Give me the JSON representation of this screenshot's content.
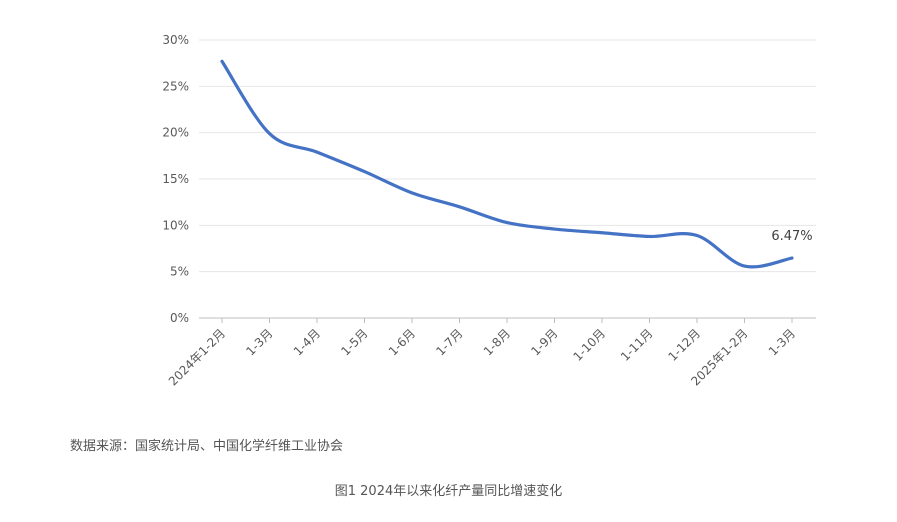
{
  "source": "数据来源：国家统计局、中国化学纤维工业协会",
  "caption": "图1  2024年以来化纤产量同比增速变化",
  "chart_data": {
    "type": "line",
    "title": "",
    "xlabel": "",
    "ylabel": "",
    "y_unit": "%",
    "ylim": [
      0,
      30
    ],
    "y_ticks": [
      "0%",
      "5%",
      "10%",
      "15%",
      "20%",
      "25%",
      "30%"
    ],
    "categories": [
      "2024年1-2月",
      "1-3月",
      "1-4月",
      "1-5月",
      "1-6月",
      "1-7月",
      "1-8月",
      "1-9月",
      "1-10月",
      "1-11月",
      "1-12月",
      "2025年1-2月",
      "1-3月"
    ],
    "series": [
      {
        "values": [
          27.7,
          19.9,
          17.9,
          15.8,
          13.5,
          12.0,
          10.3,
          9.6,
          9.2,
          8.8,
          8.9,
          5.6,
          6.47
        ]
      }
    ],
    "data_labels": [
      {
        "index": 12,
        "text": "6.47%"
      }
    ],
    "grid": true,
    "legend": "none",
    "line_color": "#4472C4",
    "grid_color": "#e6e6e6",
    "axis_color": "#bfbfbf"
  }
}
